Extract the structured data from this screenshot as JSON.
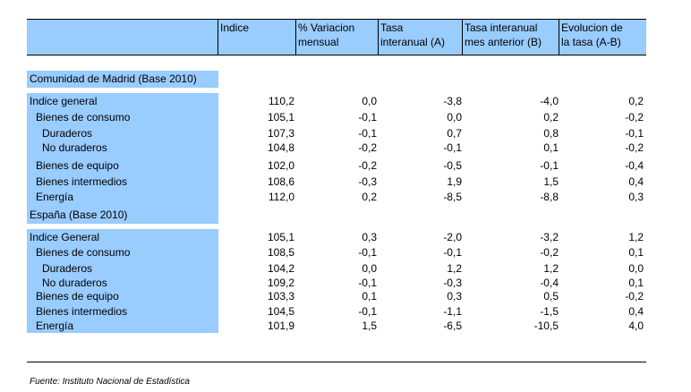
{
  "header": {
    "col0": "",
    "col1": "Indice",
    "col2_l1": "% Variacion",
    "col2_l2": "mensual",
    "col3_l1": "Tasa",
    "col3_l2": "interanual (A)",
    "col4_l1": "Tasa interanual",
    "col4_l2": "mes anterior (B)",
    "col5_l1": "Evolucion de",
    "col5_l2": "la tasa (A-B)"
  },
  "madrid": {
    "title": "Comunidad de Madrid (Base 2010)",
    "rows": [
      {
        "label": "Indice general",
        "indice": "110,2",
        "var": "0,0",
        "tasa": "-3,8",
        "tasa_ant": "-4,0",
        "evol": "0,2"
      },
      {
        "label": "Bienes de consumo",
        "indice": "105,1",
        "var": "-0,1",
        "tasa": "0,0",
        "tasa_ant": "0,2",
        "evol": "-0,2"
      },
      {
        "label": "Duraderos",
        "indice": "107,3",
        "var": "-0,1",
        "tasa": "0,7",
        "tasa_ant": "0,8",
        "evol": "-0,1"
      },
      {
        "label": "No duraderos",
        "indice": "104,8",
        "var": "-0,2",
        "tasa": "-0,1",
        "tasa_ant": "0,1",
        "evol": "-0,2"
      },
      {
        "label": "Bienes de equipo",
        "indice": "102,0",
        "var": "-0,2",
        "tasa": "-0,5",
        "tasa_ant": "-0,1",
        "evol": "-0,4"
      },
      {
        "label": "Bienes intermedios",
        "indice": "108,6",
        "var": "-0,3",
        "tasa": "1,9",
        "tasa_ant": "1,5",
        "evol": "0,4"
      },
      {
        "label": "Energía",
        "indice": "112,0",
        "var": "0,2",
        "tasa": "-8,5",
        "tasa_ant": "-8,8",
        "evol": "0,3"
      }
    ]
  },
  "espana": {
    "title": "España (Base 2010)",
    "rows": [
      {
        "label": "Indice General",
        "indice": "105,1",
        "var": "0,3",
        "tasa": "-2,0",
        "tasa_ant": "-3,2",
        "evol": "1,2"
      },
      {
        "label": "Bienes de consumo",
        "indice": "108,5",
        "var": "-0,1",
        "tasa": "-0,1",
        "tasa_ant": "-0,2",
        "evol": "0,1"
      },
      {
        "label": "Duraderos",
        "indice": "104,2",
        "var": "0,0",
        "tasa": "1,2",
        "tasa_ant": "1,2",
        "evol": "0,0"
      },
      {
        "label": "No duraderos",
        "indice": "109,2",
        "var": "-0,1",
        "tasa": "-0,3",
        "tasa_ant": "-0,4",
        "evol": "0,1"
      },
      {
        "label": "Bienes de equipo",
        "indice": "103,3",
        "var": "0,1",
        "tasa": "0,3",
        "tasa_ant": "0,5",
        "evol": "-0,2"
      },
      {
        "label": "Bienes intermedios",
        "indice": "104,5",
        "var": "-0,1",
        "tasa": "-1,1",
        "tasa_ant": "-1,5",
        "evol": "0,4"
      },
      {
        "label": "Energía",
        "indice": "101,9",
        "var": "1,5",
        "tasa": "-6,5",
        "tasa_ant": "-10,5",
        "evol": "4,0"
      }
    ]
  },
  "footer": {
    "source": "Fuente: Instituto Nacional de Estadística"
  },
  "colors": {
    "band": "#99ccff",
    "line": "#000000"
  }
}
